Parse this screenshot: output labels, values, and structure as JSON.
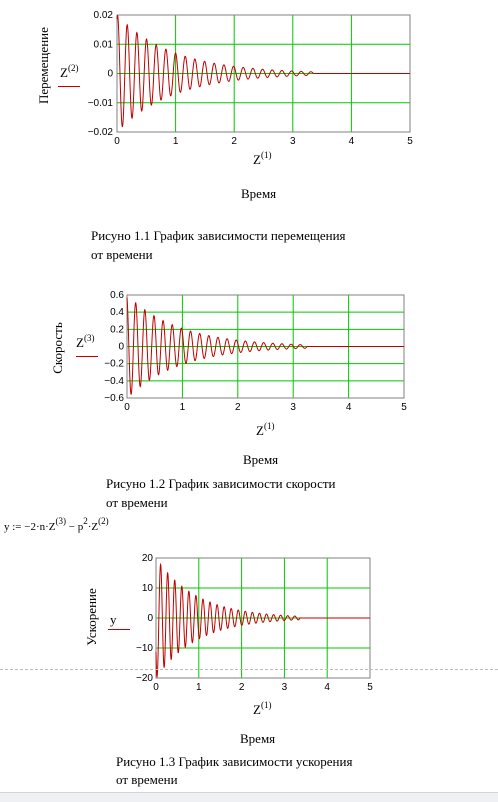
{
  "charts": [
    {
      "ylabel": "Перемещение",
      "trace_label": "Z",
      "trace_sup": "(2)",
      "xvar": "Z",
      "xsup": "(1)",
      "xtitle": "Время",
      "caption_line1": "Рисуно 1.1 График зависимости перемещения",
      "caption_line2": "от времени",
      "yticks": [
        "0.02",
        "0.01",
        "0",
        "−0.01",
        "−0.02"
      ],
      "xticks": [
        "0",
        "1",
        "2",
        "3",
        "4",
        "5"
      ]
    },
    {
      "ylabel": "Скорость",
      "trace_label": "Z",
      "trace_sup": "(3)",
      "xvar": "Z",
      "xsup": "(1)",
      "xtitle": "Время",
      "caption_line1": "Рисуно 1.2 График зависимости скорости",
      "caption_line2": "от времени",
      "yticks": [
        "0.6",
        "0.4",
        "0.2",
        "0",
        "−0.2",
        "−0.4",
        "−0.6"
      ],
      "xticks": [
        "0",
        "1",
        "2",
        "3",
        "4",
        "5"
      ]
    },
    {
      "ylabel": "Ускорение",
      "trace_label": "y",
      "trace_sup": "",
      "xvar": "Z",
      "xsup": "(1)",
      "xtitle": "Время",
      "caption_line1": "Рисуно 1.3 График зависимости ускорения",
      "caption_line2": "от времени",
      "yticks": [
        "20",
        "10",
        "0",
        "−10",
        "−20"
      ],
      "xticks": [
        "0",
        "1",
        "2",
        "3",
        "4",
        "5"
      ]
    }
  ],
  "formula": {
    "lhs": "y := −2·n·Z",
    "sup1": "(3)",
    "mid": " − p",
    "sup2": "2",
    "mid2": "·Z",
    "sup3": "(2)"
  },
  "colors": {
    "grid": "#00c800",
    "trace": "#c00000",
    "frame": "#808080"
  },
  "chart_data": [
    {
      "type": "line",
      "title": "Рисуно 1.1 График зависимости перемещения от времени",
      "xlabel": "Z(1) Время",
      "ylabel": "Перемещение",
      "xlim": [
        0,
        5
      ],
      "ylim": [
        -0.02,
        0.02
      ],
      "grid": true,
      "series": [
        {
          "name": "Z(2)",
          "amplitude0": 0.02,
          "decay": 1.05,
          "period": 0.165,
          "phase": "sin",
          "t_end": 3.35
        }
      ]
    },
    {
      "type": "line",
      "title": "Рисуно 1.2 График зависимости скорости от времени",
      "xlabel": "Z(1) Время",
      "ylabel": "Скорость",
      "xlim": [
        0,
        5
      ],
      "ylim": [
        -0.6,
        0.6
      ],
      "grid": true,
      "series": [
        {
          "name": "Z(3)",
          "amplitude0": 0.6,
          "decay": 1.05,
          "period": 0.165,
          "phase": "cos",
          "t_end": 3.25
        }
      ]
    },
    {
      "type": "line",
      "title": "Рисуно 1.3 График зависимости ускорения от времени",
      "xlabel": "Z(1) Время",
      "ylabel": "Ускорение",
      "xlim": [
        0,
        5
      ],
      "ylim": [
        -20,
        20
      ],
      "grid": true,
      "series": [
        {
          "name": "y",
          "amplitude0": 20,
          "decay": 1.05,
          "period": 0.165,
          "phase": "negsin",
          "t_end": 3.35
        }
      ]
    }
  ]
}
